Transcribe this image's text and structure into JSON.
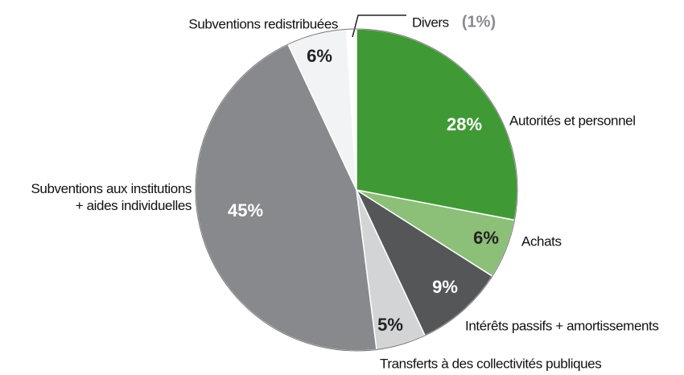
{
  "chart_data": {
    "type": "pie",
    "categories": [
      "Autorités et personnel",
      "Achats",
      "Intérêts passifs + amortissements",
      "Transferts à des collectivités publiques",
      "Subventions aux institutions\n+ aides individuelles",
      "Subventions redistribuées",
      "Divers"
    ],
    "values": [
      28,
      6,
      9,
      5,
      45,
      6,
      1
    ],
    "value_labels": [
      "28%",
      "6%",
      "9%",
      "5%",
      "45%",
      "6%",
      "(1%)"
    ],
    "colors": [
      "#3f9a35",
      "#8cbf78",
      "#555658",
      "#d3d4d6",
      "#88898d",
      "#f2f3f4",
      "#ffffff"
    ]
  }
}
